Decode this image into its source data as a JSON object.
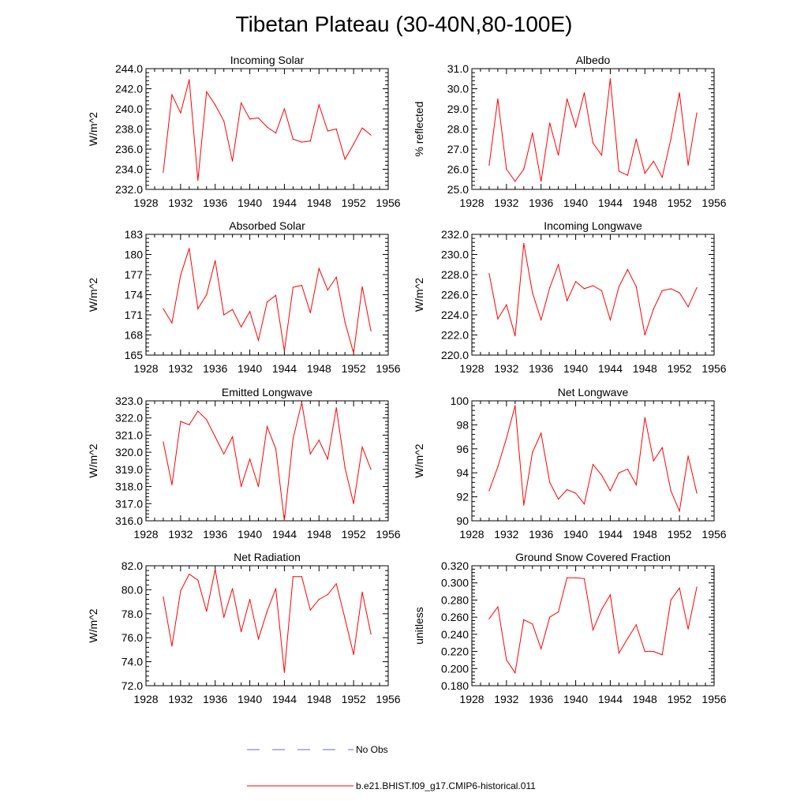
{
  "title": "Tibetan Plateau (30-40N,80-100E)",
  "colors": {
    "model": "#ff0000",
    "obs": "#6a6acd",
    "axis": "#000000"
  },
  "legend": {
    "obs_label": "No Obs",
    "model_label": "b.e21.BHIST.f09_g17.CMIP6-historical.011"
  },
  "chart_data": [
    {
      "type": "line",
      "title": "Incoming Solar",
      "ylabel": "W/m^2",
      "xlim": [
        1928,
        1956
      ],
      "ylim": [
        232,
        244
      ],
      "xticks": [
        "1928",
        "1932",
        "1936",
        "1940",
        "1944",
        "1948",
        "1952",
        "1956"
      ],
      "yticks": [
        "232.0",
        "234.0",
        "236.0",
        "238.0",
        "240.0",
        "242.0",
        "244.0"
      ],
      "x": [
        1930,
        1931,
        1932,
        1933,
        1934,
        1935,
        1936,
        1937,
        1938,
        1939,
        1940,
        1941,
        1942,
        1943,
        1944,
        1945,
        1946,
        1947,
        1948,
        1949,
        1950,
        1951,
        1952,
        1953,
        1954
      ],
      "series": [
        {
          "name": "b.e21.BHIST.f09_g17.CMIP6-historical.011",
          "values": [
            233.7,
            241.4,
            239.6,
            242.9,
            232.9,
            241.7,
            240.4,
            238.8,
            234.8,
            240.6,
            239.0,
            239.1,
            238.2,
            237.6,
            240.0,
            237.0,
            236.7,
            236.8,
            240.4,
            237.8,
            238.0,
            235.0,
            236.5,
            238.1,
            237.4
          ]
        }
      ]
    },
    {
      "type": "line",
      "title": "Albedo",
      "ylabel": "% reflected",
      "xlim": [
        1928,
        1956
      ],
      "ylim": [
        25,
        31
      ],
      "xticks": [
        "1928",
        "1932",
        "1936",
        "1940",
        "1944",
        "1948",
        "1952",
        "1956"
      ],
      "yticks": [
        "25.0",
        "26.0",
        "27.0",
        "28.0",
        "29.0",
        "30.0",
        "31.0"
      ],
      "x": [
        1930,
        1931,
        1932,
        1933,
        1934,
        1935,
        1936,
        1937,
        1938,
        1939,
        1940,
        1941,
        1942,
        1943,
        1944,
        1945,
        1946,
        1947,
        1948,
        1949,
        1950,
        1951,
        1952,
        1953,
        1954
      ],
      "series": [
        {
          "name": "b.e21.BHIST.f09_g17.CMIP6-historical.011",
          "values": [
            26.2,
            29.5,
            26.0,
            25.4,
            26.0,
            27.8,
            25.4,
            28.3,
            26.7,
            29.5,
            28.1,
            29.8,
            27.3,
            26.7,
            30.5,
            25.9,
            25.7,
            27.5,
            25.8,
            26.4,
            25.6,
            27.5,
            29.8,
            26.2,
            28.8
          ]
        }
      ]
    },
    {
      "type": "line",
      "title": "Absorbed Solar",
      "ylabel": "W/m^2",
      "xlim": [
        1928,
        1956
      ],
      "ylim": [
        165,
        183
      ],
      "xticks": [
        "1928",
        "1932",
        "1936",
        "1940",
        "1944",
        "1948",
        "1952",
        "1956"
      ],
      "yticks": [
        "165",
        "168",
        "171",
        "174",
        "177",
        "180",
        "183"
      ],
      "x": [
        1930,
        1931,
        1932,
        1933,
        1934,
        1935,
        1936,
        1937,
        1938,
        1939,
        1940,
        1941,
        1942,
        1943,
        1944,
        1945,
        1946,
        1947,
        1948,
        1949,
        1950,
        1951,
        1952,
        1953,
        1954
      ],
      "series": [
        {
          "name": "b.e21.BHIST.f09_g17.CMIP6-historical.011",
          "values": [
            171.9,
            169.8,
            176.9,
            180.9,
            171.9,
            174.0,
            179.1,
            171.0,
            171.8,
            169.2,
            171.5,
            167.2,
            172.9,
            173.9,
            165.6,
            175.1,
            175.4,
            171.3,
            177.9,
            174.7,
            176.6,
            169.9,
            165.3,
            175.2,
            168.6
          ]
        }
      ]
    },
    {
      "type": "line",
      "title": "Incoming Longwave",
      "ylabel": "W/m^2",
      "xlim": [
        1928,
        1956
      ],
      "ylim": [
        220,
        232
      ],
      "xticks": [
        "1928",
        "1932",
        "1936",
        "1940",
        "1944",
        "1948",
        "1952",
        "1956"
      ],
      "yticks": [
        "220.0",
        "222.0",
        "224.0",
        "226.0",
        "228.0",
        "230.0",
        "232.0"
      ],
      "x": [
        1930,
        1931,
        1932,
        1933,
        1934,
        1935,
        1936,
        1937,
        1938,
        1939,
        1940,
        1941,
        1942,
        1943,
        1944,
        1945,
        1946,
        1947,
        1948,
        1949,
        1950,
        1951,
        1952,
        1953,
        1954
      ],
      "series": [
        {
          "name": "b.e21.BHIST.f09_g17.CMIP6-historical.011",
          "values": [
            228.1,
            223.6,
            225.0,
            221.9,
            231.1,
            226.2,
            223.5,
            226.7,
            229.0,
            225.4,
            227.3,
            226.6,
            226.9,
            226.4,
            223.5,
            226.8,
            228.5,
            226.8,
            222.0,
            224.6,
            226.4,
            226.6,
            226.2,
            224.8,
            226.7
          ]
        }
      ]
    },
    {
      "type": "line",
      "title": "Emitted Longwave",
      "ylabel": "W/m^2",
      "xlim": [
        1928,
        1956
      ],
      "ylim": [
        316,
        323
      ],
      "xticks": [
        "1928",
        "1932",
        "1936",
        "1940",
        "1944",
        "1948",
        "1952",
        "1956"
      ],
      "yticks": [
        "316.0",
        "317.0",
        "318.0",
        "319.0",
        "320.0",
        "321.0",
        "322.0",
        "323.0"
      ],
      "x": [
        1930,
        1931,
        1932,
        1933,
        1934,
        1935,
        1936,
        1937,
        1938,
        1939,
        1940,
        1941,
        1942,
        1943,
        1944,
        1945,
        1946,
        1947,
        1948,
        1949,
        1950,
        1951,
        1952,
        1953,
        1954
      ],
      "series": [
        {
          "name": "b.e21.BHIST.f09_g17.CMIP6-historical.011",
          "values": [
            320.6,
            318.1,
            321.8,
            321.6,
            322.4,
            321.9,
            320.9,
            319.9,
            320.9,
            318.0,
            319.6,
            318.0,
            321.5,
            320.2,
            316.0,
            320.8,
            322.9,
            319.9,
            320.7,
            319.6,
            322.6,
            319.1,
            317.0,
            320.3,
            319.0
          ]
        }
      ]
    },
    {
      "type": "line",
      "title": "Net Longwave",
      "ylabel": "W/m^2",
      "xlim": [
        1928,
        1956
      ],
      "ylim": [
        90,
        100
      ],
      "xticks": [
        "1928",
        "1932",
        "1936",
        "1940",
        "1944",
        "1948",
        "1952",
        "1956"
      ],
      "yticks": [
        "90",
        "92",
        "94",
        "96",
        "98",
        "100"
      ],
      "x": [
        1930,
        1931,
        1932,
        1933,
        1934,
        1935,
        1936,
        1937,
        1938,
        1939,
        1940,
        1941,
        1942,
        1943,
        1944,
        1945,
        1946,
        1947,
        1948,
        1949,
        1950,
        1951,
        1952,
        1953,
        1954
      ],
      "series": [
        {
          "name": "b.e21.BHIST.f09_g17.CMIP6-historical.011",
          "values": [
            92.5,
            94.5,
            96.9,
            99.6,
            91.3,
            95.7,
            97.3,
            93.2,
            91.8,
            92.6,
            92.3,
            91.4,
            94.7,
            93.8,
            92.5,
            94.0,
            94.3,
            93.0,
            98.6,
            95.0,
            96.1,
            92.5,
            90.8,
            95.4,
            92.3
          ]
        }
      ]
    },
    {
      "type": "line",
      "title": "Net Radiation",
      "ylabel": "W/m^2",
      "xlim": [
        1928,
        1956
      ],
      "ylim": [
        72,
        82
      ],
      "xticks": [
        "1928",
        "1932",
        "1936",
        "1940",
        "1944",
        "1948",
        "1952",
        "1956"
      ],
      "yticks": [
        "72.0",
        "74.0",
        "76.0",
        "78.0",
        "80.0",
        "82.0"
      ],
      "x": [
        1930,
        1931,
        1932,
        1933,
        1934,
        1935,
        1936,
        1937,
        1938,
        1939,
        1940,
        1941,
        1942,
        1943,
        1944,
        1945,
        1946,
        1947,
        1948,
        1949,
        1950,
        1951,
        1952,
        1953,
        1954
      ],
      "series": [
        {
          "name": "b.e21.BHIST.f09_g17.CMIP6-historical.011",
          "values": [
            79.4,
            75.3,
            79.9,
            81.3,
            80.8,
            78.2,
            81.7,
            77.7,
            80.1,
            76.5,
            79.2,
            75.9,
            78.2,
            80.1,
            73.1,
            81.1,
            81.1,
            78.3,
            79.2,
            79.6,
            80.5,
            77.6,
            74.6,
            79.8,
            76.3
          ]
        }
      ]
    },
    {
      "type": "line",
      "title": "Ground Snow Covered Fraction",
      "ylabel": "unitless",
      "xlim": [
        1928,
        1956
      ],
      "ylim": [
        0.18,
        0.32
      ],
      "xticks": [
        "1928",
        "1932",
        "1936",
        "1940",
        "1944",
        "1948",
        "1952",
        "1956"
      ],
      "yticks": [
        "0.180",
        "0.200",
        "0.220",
        "0.240",
        "0.260",
        "0.280",
        "0.300",
        "0.320"
      ],
      "x": [
        1930,
        1931,
        1932,
        1933,
        1934,
        1935,
        1936,
        1937,
        1938,
        1939,
        1940,
        1941,
        1942,
        1943,
        1944,
        1945,
        1946,
        1947,
        1948,
        1949,
        1950,
        1951,
        1952,
        1953,
        1954
      ],
      "series": [
        {
          "name": "b.e21.BHIST.f09_g17.CMIP6-historical.011",
          "values": [
            0.258,
            0.272,
            0.21,
            0.195,
            0.257,
            0.252,
            0.223,
            0.26,
            0.266,
            0.306,
            0.306,
            0.305,
            0.245,
            0.269,
            0.286,
            0.218,
            0.235,
            0.251,
            0.22,
            0.22,
            0.216,
            0.28,
            0.294,
            0.246,
            0.295
          ]
        }
      ]
    }
  ]
}
